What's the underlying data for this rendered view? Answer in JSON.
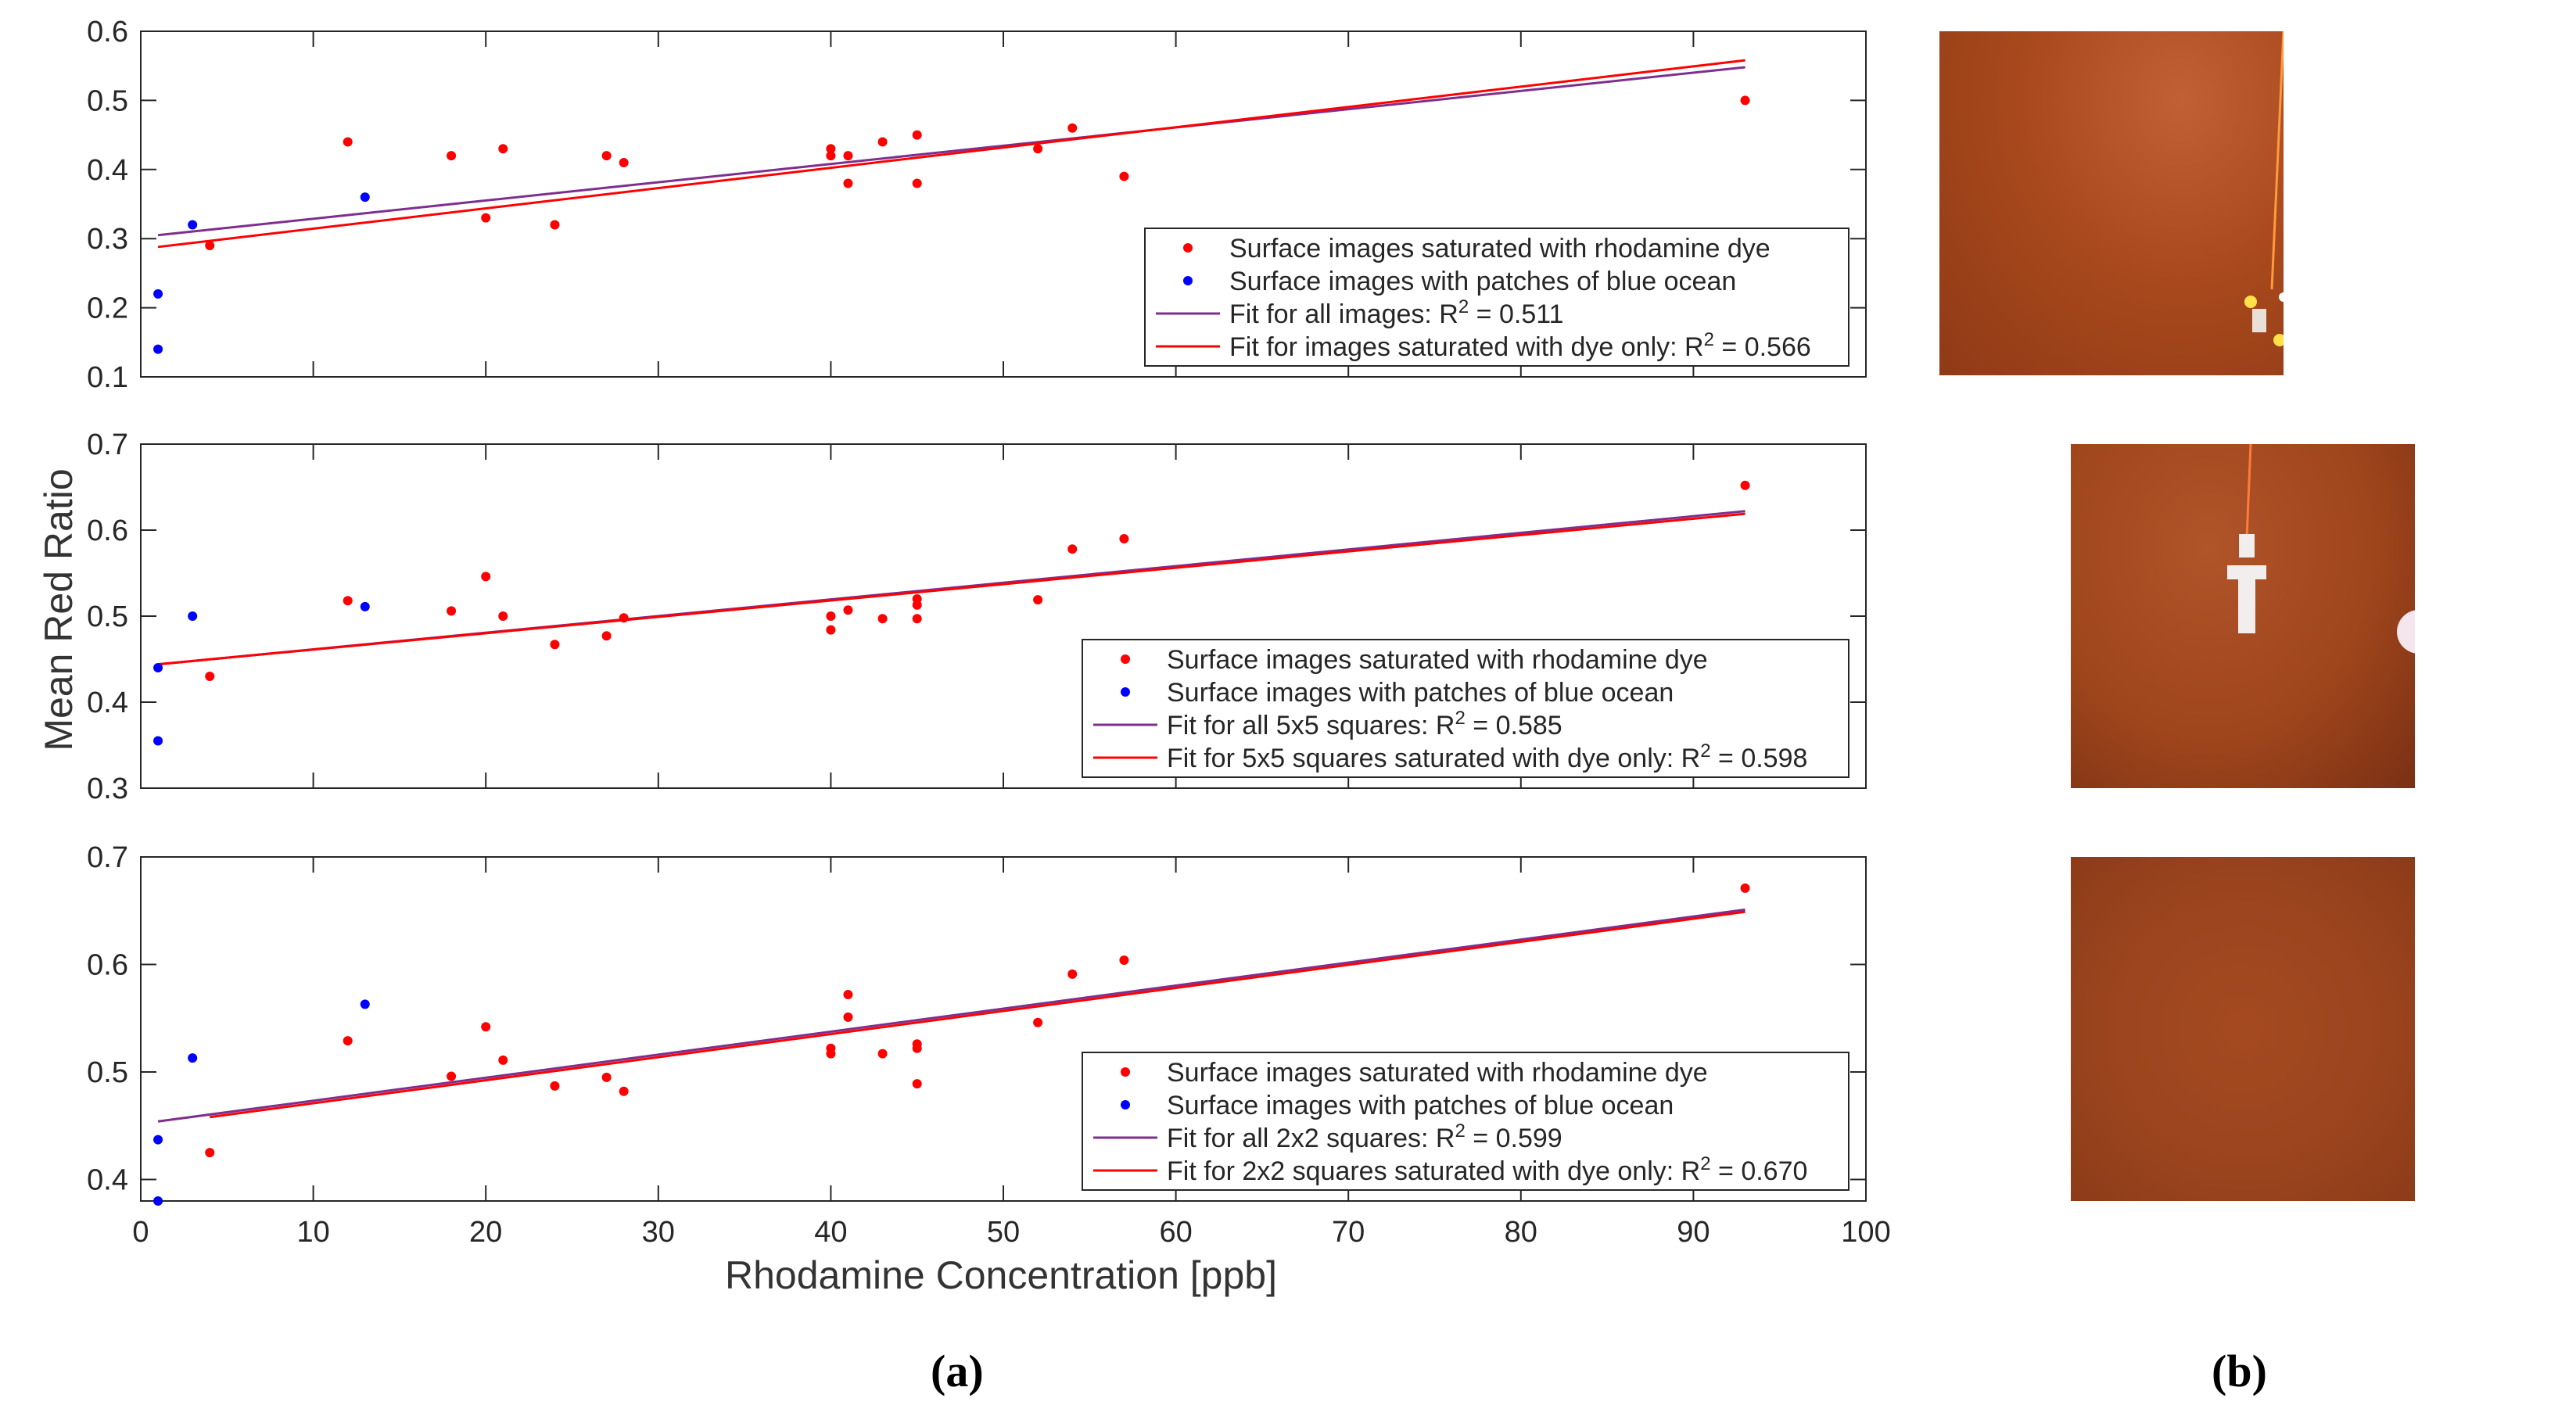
{
  "figure": {
    "ylabel": "Mean Red Ratio",
    "xlabel": "Rhodamine Concentration [ppb]",
    "panel_a_label": "(a)",
    "panel_b_label": "(b)",
    "photos": [
      {
        "description": "sensor-in-dye-wide",
        "color": "#a84a1f"
      },
      {
        "description": "sensor-in-dye-5x5",
        "color": "#a3461c"
      },
      {
        "description": "dye-2x2",
        "color": "#9a441e"
      }
    ]
  },
  "colors": {
    "dye": "#ff0000",
    "blue": "#0000ff",
    "fit_all": "#7e2f8e",
    "fit_dye": "#ff0000"
  },
  "chart_data": [
    {
      "type": "scatter",
      "title": "",
      "xlim": [
        0,
        100
      ],
      "ylim": [
        0.1,
        0.6
      ],
      "xticks": [
        0,
        10,
        20,
        30,
        40,
        50,
        60,
        70,
        80,
        90,
        100
      ],
      "yticks": [
        0.1,
        0.2,
        0.3,
        0.4,
        0.5,
        0.6
      ],
      "show_xticklabels": false,
      "series": [
        {
          "name": "Surface images saturated with rhodamine dye",
          "kind": "points",
          "x": [
            4,
            12,
            18,
            20,
            21,
            24,
            27,
            28,
            40,
            40,
            41,
            41,
            43,
            45,
            45,
            52,
            54,
            57,
            93
          ],
          "y": [
            0.29,
            0.44,
            0.42,
            0.33,
            0.43,
            0.32,
            0.42,
            0.41,
            0.43,
            0.42,
            0.42,
            0.38,
            0.44,
            0.45,
            0.38,
            0.43,
            0.46,
            0.39,
            0.5
          ]
        },
        {
          "name": "Surface images with patches of blue ocean",
          "kind": "points",
          "x": [
            1,
            1,
            3,
            13
          ],
          "y": [
            0.22,
            0.14,
            0.32,
            0.36
          ]
        },
        {
          "name": "Fit for all images: R",
          "r2": "0.511",
          "kind": "line",
          "x": [
            1,
            93
          ],
          "y": [
            0.305,
            0.548
          ]
        },
        {
          "name": "Fit for images saturated with dye only: R",
          "r2": "0.566",
          "kind": "line",
          "x": [
            1,
            93
          ],
          "y": [
            0.288,
            0.558
          ]
        }
      ],
      "legend": "bottom-right"
    },
    {
      "type": "scatter",
      "title": "",
      "xlim": [
        0,
        100
      ],
      "ylim": [
        0.3,
        0.7
      ],
      "xticks": [
        0,
        10,
        20,
        30,
        40,
        50,
        60,
        70,
        80,
        90,
        100
      ],
      "yticks": [
        0.3,
        0.4,
        0.5,
        0.6,
        0.7
      ],
      "show_xticklabels": false,
      "series": [
        {
          "name": "Surface images saturated with rhodamine dye",
          "kind": "points",
          "x": [
            4,
            12,
            18,
            20,
            21,
            24,
            27,
            28,
            40,
            40,
            41,
            43,
            45,
            45,
            45,
            52,
            54,
            57,
            93
          ],
          "y": [
            0.43,
            0.518,
            0.506,
            0.546,
            0.5,
            0.467,
            0.477,
            0.498,
            0.5,
            0.484,
            0.507,
            0.497,
            0.52,
            0.513,
            0.497,
            0.519,
            0.578,
            0.59,
            0.652
          ]
        },
        {
          "name": "Surface images with patches of blue ocean",
          "kind": "points",
          "x": [
            1,
            1,
            3,
            13
          ],
          "y": [
            0.44,
            0.355,
            0.5,
            0.511
          ]
        },
        {
          "name": "Fit for all 5x5 squares: R",
          "r2": "0.585",
          "kind": "line",
          "x": [
            1,
            93
          ],
          "y": [
            0.444,
            0.622
          ]
        },
        {
          "name": "Fit for 5x5 squares saturated with dye only: R",
          "r2": "0.598",
          "kind": "line",
          "x": [
            1,
            93
          ],
          "y": [
            0.444,
            0.619
          ]
        }
      ],
      "legend": "bottom-right"
    },
    {
      "type": "scatter",
      "title": "",
      "xlim": [
        0,
        100
      ],
      "ylim": [
        0.38,
        0.7
      ],
      "xticks": [
        0,
        10,
        20,
        30,
        40,
        50,
        60,
        70,
        80,
        90,
        100
      ],
      "yticks": [
        0.4,
        0.5,
        0.6,
        0.7
      ],
      "show_xticklabels": true,
      "series": [
        {
          "name": "Surface images saturated with rhodamine dye",
          "kind": "points",
          "x": [
            4,
            12,
            18,
            20,
            21,
            24,
            27,
            28,
            40,
            40,
            41,
            41,
            43,
            45,
            45,
            45,
            52,
            54,
            57,
            93
          ],
          "y": [
            0.425,
            0.529,
            0.496,
            0.542,
            0.511,
            0.487,
            0.495,
            0.482,
            0.522,
            0.517,
            0.572,
            0.551,
            0.517,
            0.526,
            0.522,
            0.489,
            0.546,
            0.591,
            0.604,
            0.671
          ]
        },
        {
          "name": "Surface images with patches of blue ocean",
          "kind": "points",
          "x": [
            1,
            1,
            3,
            13
          ],
          "y": [
            0.437,
            0.38,
            0.513,
            0.563
          ]
        },
        {
          "name": "Fit for all 2x2 squares: R",
          "r2": "0.599",
          "kind": "line",
          "x": [
            1,
            93
          ],
          "y": [
            0.454,
            0.651
          ]
        },
        {
          "name": "Fit for 2x2 squares saturated with dye only: R",
          "r2": "0.670",
          "kind": "line",
          "x": [
            4,
            93
          ],
          "y": [
            0.458,
            0.649
          ]
        }
      ],
      "legend": "bottom-right"
    }
  ]
}
